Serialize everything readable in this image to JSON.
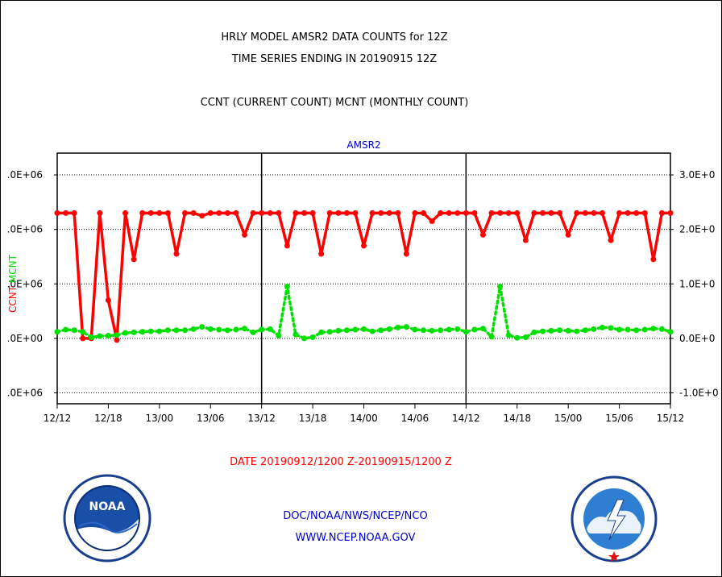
{
  "header": {
    "title_line1": "HRLY MODEL AMSR2 DATA COUNTS for 12Z",
    "title_line2": "TIME SERIES ENDING IN 20190915 12Z",
    "subtitle": "CCNT (CURRENT COUNT) MCNT (MONTHLY COUNT)"
  },
  "footer": {
    "date_range": "DATE 20190912/1200 Z-20190915/1200 Z",
    "org": "DOC/NOAA/NWS/NCEP/NCO",
    "url": "WWW.NCEP.NOAA.GOV",
    "noaa_logo_text": "NOAA",
    "nws_logo_text": "NATIONAL WEATHER SERVICE"
  },
  "colors": {
    "ccnt": "#ff0000",
    "mcnt": "#00e000",
    "panel_title": "#0000cc",
    "footer_date": "#ff0000",
    "footer_link": "#0000cc"
  },
  "chart_data": {
    "type": "line",
    "title": "AMSR2",
    "ylabel_left_red": "CCNT",
    "ylabel_left_green": "MCNT",
    "x_ticks": [
      "12/12",
      "12/18",
      "13/00",
      "13/06",
      "13/12",
      "13/18",
      "14/00",
      "14/06",
      "14/12",
      "14/18",
      "15/00",
      "15/06",
      "15/12"
    ],
    "x_unit": "hours from 2019-09-12 12Z",
    "xlim": [
      0,
      72
    ],
    "ylim": [
      -1200000,
      3400000
    ],
    "y_ticks_left": [
      ".0E+06",
      ".0E+06",
      ".0E+06",
      ".0E+00",
      ".0E+06"
    ],
    "y_ticks_left_values": [
      3000000,
      2000000,
      1000000,
      0,
      -1000000
    ],
    "y_ticks_right": [
      "3.0E+0",
      "2.0E+0",
      "1.0E+0",
      "0.0E+0",
      "-1.0E+0"
    ],
    "y_ticks_right_values": [
      3000000,
      2000000,
      1000000,
      0,
      -1000000
    ],
    "grid": "horizontal dotted",
    "series": [
      {
        "name": "CCNT",
        "style": "solid",
        "values": [
          2300000,
          2300000,
          2300000,
          0,
          0,
          2300000,
          700000,
          -30000,
          2300000,
          1450000,
          2300000,
          2300000,
          2300000,
          2300000,
          1550000,
          2300000,
          2300000,
          2250000,
          2300000,
          2300000,
          2300000,
          2300000,
          1900000,
          2300000,
          2300000,
          2300000,
          2300000,
          1700000,
          2300000,
          2300000,
          2300000,
          1550000,
          2300000,
          2300000,
          2300000,
          2300000,
          1700000,
          2300000,
          2300000,
          2300000,
          2300000,
          1550000,
          2300000,
          2300000,
          2150000,
          2300000,
          2300000,
          2300000,
          2300000,
          2300000,
          1900000,
          2300000,
          2300000,
          2300000,
          2300000,
          1800000,
          2300000,
          2300000,
          2300000,
          2300000,
          1900000,
          2300000,
          2300000,
          2300000,
          2300000,
          1800000,
          2300000,
          2300000,
          2300000,
          2300000,
          1450000,
          2300000,
          2300000
        ]
      },
      {
        "name": "MCNT",
        "style": "dotted",
        "values": [
          120000,
          160000,
          150000,
          120000,
          20000,
          40000,
          50000,
          60000,
          100000,
          110000,
          120000,
          130000,
          130000,
          150000,
          150000,
          150000,
          170000,
          210000,
          170000,
          160000,
          150000,
          160000,
          180000,
          110000,
          160000,
          170000,
          50000,
          950000,
          70000,
          0,
          20000,
          110000,
          120000,
          140000,
          150000,
          160000,
          170000,
          130000,
          150000,
          170000,
          200000,
          210000,
          160000,
          150000,
          140000,
          150000,
          160000,
          170000,
          120000,
          160000,
          180000,
          30000,
          950000,
          60000,
          10000,
          20000,
          110000,
          130000,
          140000,
          150000,
          140000,
          130000,
          150000,
          170000,
          200000,
          190000,
          160000,
          160000,
          150000,
          160000,
          180000,
          170000,
          120000
        ]
      }
    ]
  }
}
